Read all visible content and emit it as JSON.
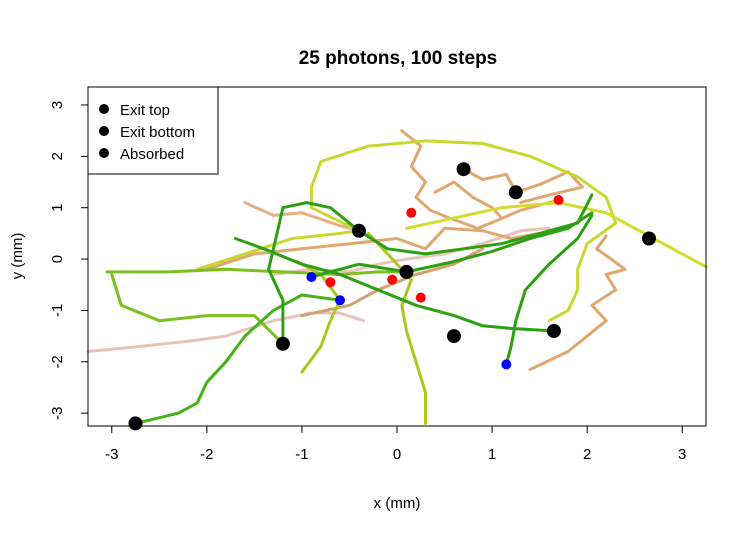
{
  "chart_data": {
    "type": "line",
    "title": "25 photons, 100 steps",
    "xlabel": "x (mm)",
    "ylabel": "y (mm)",
    "xlim": [
      -3.25,
      3.25
    ],
    "ylim": [
      -3.25,
      3.35
    ],
    "x_ticks": [
      -3,
      -2,
      -1,
      0,
      1,
      2,
      3
    ],
    "y_ticks": [
      -3,
      -2,
      -1,
      0,
      1,
      2,
      3
    ],
    "grid": false,
    "legend_position": "top-left",
    "legend": [
      {
        "label": "Exit top",
        "color": "#000000"
      },
      {
        "label": "Exit bottom",
        "color": "#ff0000"
      },
      {
        "label": "Absorbed",
        "color": "#0000ff"
      }
    ],
    "endpoints": {
      "exit_top": [
        [
          -2.75,
          -3.2
        ],
        [
          -1.2,
          -1.65
        ],
        [
          -0.4,
          0.55
        ],
        [
          0.1,
          -0.25
        ],
        [
          0.7,
          1.75
        ],
        [
          0.6,
          -1.5
        ],
        [
          1.25,
          1.3
        ],
        [
          1.65,
          -1.4
        ],
        [
          2.65,
          0.4
        ]
      ],
      "exit_bottom": [
        [
          -0.7,
          -0.45
        ],
        [
          -0.05,
          -0.4
        ],
        [
          0.15,
          0.9
        ],
        [
          0.25,
          -0.75
        ],
        [
          1.7,
          1.15
        ]
      ],
      "absorbed": [
        [
          -0.9,
          -0.35
        ],
        [
          -0.6,
          -0.8
        ],
        [
          1.15,
          -2.05
        ]
      ]
    },
    "paths": [
      {
        "color": "#e8c4b8",
        "points": [
          [
            -3.25,
            -1.8
          ],
          [
            -2.7,
            -1.7
          ],
          [
            -2.2,
            -1.6
          ],
          [
            -1.8,
            -1.5
          ],
          [
            -1.3,
            -1.2
          ],
          [
            -0.9,
            -1.05
          ],
          [
            -0.6,
            -1.05
          ],
          [
            -0.35,
            -1.2
          ]
        ]
      },
      {
        "color": "#e8c4b8",
        "points": [
          [
            -1.3,
            -0.3
          ],
          [
            -0.9,
            -0.2
          ],
          [
            -0.5,
            -0.25
          ],
          [
            -0.2,
            -0.1
          ],
          [
            0.1,
            0.0
          ],
          [
            0.5,
            0.1
          ],
          [
            0.9,
            0.3
          ],
          [
            1.3,
            0.55
          ],
          [
            1.6,
            0.6
          ]
        ]
      },
      {
        "color": "#e8b080",
        "points": [
          [
            -1.6,
            1.1
          ],
          [
            -1.3,
            0.85
          ],
          [
            -1.0,
            0.9
          ],
          [
            -0.6,
            0.65
          ],
          [
            -0.4,
            0.55
          ]
        ]
      },
      {
        "color": "#e0a870",
        "points": [
          [
            -2.0,
            -0.2
          ],
          [
            -1.5,
            0.1
          ],
          [
            -1.0,
            0.2
          ],
          [
            -0.5,
            0.3
          ],
          [
            0.0,
            0.4
          ],
          [
            0.3,
            0.2
          ],
          [
            0.5,
            0.6
          ],
          [
            0.9,
            0.55
          ],
          [
            1.2,
            0.4
          ],
          [
            1.5,
            0.5
          ]
        ]
      },
      {
        "color": "#e0a870",
        "points": [
          [
            0.05,
            2.5
          ],
          [
            0.25,
            2.2
          ],
          [
            0.15,
            1.8
          ],
          [
            0.3,
            1.5
          ],
          [
            0.2,
            1.2
          ],
          [
            0.35,
            0.95
          ],
          [
            0.55,
            0.8
          ],
          [
            0.85,
            0.6
          ],
          [
            1.05,
            0.75
          ],
          [
            1.3,
            0.95
          ],
          [
            1.7,
            1.15
          ]
        ]
      },
      {
        "color": "#e0a870",
        "points": [
          [
            0.7,
            1.75
          ],
          [
            0.9,
            1.55
          ],
          [
            1.15,
            1.65
          ],
          [
            1.25,
            1.3
          ],
          [
            1.5,
            1.45
          ],
          [
            1.8,
            1.7
          ],
          [
            1.95,
            1.4
          ],
          [
            1.6,
            1.25
          ],
          [
            1.3,
            1.1
          ]
        ]
      },
      {
        "color": "#e0a870",
        "points": [
          [
            0.4,
            1.3
          ],
          [
            0.6,
            1.5
          ],
          [
            0.8,
            1.2
          ],
          [
            1.0,
            1.0
          ],
          [
            1.1,
            0.8
          ]
        ]
      },
      {
        "color": "#e0a870",
        "points": [
          [
            1.4,
            -2.15
          ],
          [
            1.8,
            -1.8
          ],
          [
            2.0,
            -1.5
          ],
          [
            2.2,
            -1.2
          ],
          [
            2.05,
            -0.9
          ],
          [
            2.3,
            -0.6
          ],
          [
            2.2,
            -0.3
          ],
          [
            2.4,
            -0.2
          ],
          [
            2.1,
            0.2
          ],
          [
            2.2,
            0.45
          ]
        ]
      },
      {
        "color": "#d4a070",
        "points": [
          [
            -1.0,
            -1.1
          ],
          [
            -0.5,
            -0.9
          ],
          [
            -0.2,
            -0.6
          ],
          [
            0.2,
            -0.3
          ],
          [
            0.6,
            -0.1
          ],
          [
            0.9,
            0.2
          ]
        ]
      },
      {
        "color": "#c8d830",
        "points": [
          [
            -0.4,
            0.55
          ],
          [
            -0.9,
            1.0
          ],
          [
            -0.9,
            1.4
          ],
          [
            -0.8,
            1.9
          ],
          [
            -0.3,
            2.2
          ],
          [
            0.3,
            2.3
          ],
          [
            0.9,
            2.25
          ],
          [
            1.4,
            2.0
          ],
          [
            1.9,
            1.6
          ],
          [
            2.2,
            1.2
          ],
          [
            2.3,
            0.7
          ],
          [
            2.0,
            0.3
          ],
          [
            1.9,
            -0.2
          ],
          [
            1.9,
            -0.6
          ],
          [
            1.8,
            -1.0
          ],
          [
            1.6,
            -1.2
          ]
        ]
      },
      {
        "color": "#c8d830",
        "points": [
          [
            -2.1,
            -0.2
          ],
          [
            -1.6,
            0.1
          ],
          [
            -1.1,
            0.4
          ],
          [
            -0.6,
            0.5
          ],
          [
            -0.4,
            0.55
          ]
        ]
      },
      {
        "color": "#d4dc30",
        "points": [
          [
            0.1,
            0.6
          ],
          [
            0.6,
            0.8
          ],
          [
            1.1,
            1.0
          ],
          [
            1.7,
            1.1
          ],
          [
            2.2,
            0.9
          ],
          [
            2.6,
            0.5
          ],
          [
            2.9,
            0.2
          ],
          [
            3.25,
            -0.15
          ]
        ]
      },
      {
        "color": "#a8c820",
        "points": [
          [
            -0.3,
            0.5
          ],
          [
            -0.1,
            0.1
          ],
          [
            0.15,
            -0.4
          ],
          [
            0.05,
            -0.9
          ],
          [
            0.1,
            -1.4
          ],
          [
            0.2,
            -2.0
          ],
          [
            0.3,
            -2.6
          ],
          [
            0.3,
            -3.2
          ]
        ]
      },
      {
        "color": "#a8c820",
        "points": [
          [
            -1.05,
            -0.05
          ],
          [
            -0.8,
            -0.3
          ],
          [
            -0.6,
            -0.8
          ],
          [
            -0.7,
            -1.2
          ],
          [
            -0.8,
            -1.7
          ],
          [
            -1.0,
            -2.2
          ]
        ]
      },
      {
        "color": "#7cc020",
        "points": [
          [
            -3.05,
            -0.25
          ],
          [
            -2.4,
            -0.25
          ],
          [
            -1.8,
            -0.2
          ],
          [
            -1.2,
            -0.25
          ],
          [
            -0.6,
            -0.3
          ],
          [
            -0.2,
            -0.25
          ],
          [
            0.1,
            -0.25
          ]
        ]
      },
      {
        "color": "#7cc020",
        "points": [
          [
            -3.0,
            -0.3
          ],
          [
            -2.9,
            -0.9
          ],
          [
            -2.5,
            -1.2
          ],
          [
            -2.0,
            -1.1
          ],
          [
            -1.5,
            -1.1
          ],
          [
            -1.2,
            -1.65
          ]
        ]
      },
      {
        "color": "#48b018",
        "points": [
          [
            -2.75,
            -3.2
          ],
          [
            -2.3,
            -3.0
          ],
          [
            -2.1,
            -2.8
          ],
          [
            -2.0,
            -2.4
          ],
          [
            -1.8,
            -2.0
          ],
          [
            -1.6,
            -1.5
          ],
          [
            -1.3,
            -1.0
          ],
          [
            -1.0,
            -0.7
          ],
          [
            -0.6,
            -0.8
          ]
        ]
      },
      {
        "color": "#2ca010",
        "points": [
          [
            -1.2,
            -1.65
          ],
          [
            -1.2,
            -0.8
          ],
          [
            -1.35,
            -0.2
          ],
          [
            -1.3,
            0.2
          ],
          [
            -1.25,
            0.6
          ],
          [
            -1.2,
            1.0
          ],
          [
            -0.95,
            1.1
          ],
          [
            -0.7,
            1.0
          ],
          [
            -0.4,
            0.55
          ],
          [
            -0.1,
            0.2
          ],
          [
            0.3,
            0.1
          ],
          [
            0.7,
            0.2
          ],
          [
            1.1,
            0.3
          ],
          [
            1.5,
            0.5
          ],
          [
            1.9,
            0.7
          ],
          [
            2.05,
            1.25
          ]
        ]
      },
      {
        "color": "#2ca010",
        "points": [
          [
            -1.7,
            0.4
          ],
          [
            -1.4,
            0.2
          ],
          [
            -1.0,
            -0.1
          ],
          [
            -0.6,
            -0.3
          ],
          [
            -0.2,
            -0.6
          ],
          [
            0.2,
            -0.9
          ],
          [
            0.6,
            -1.1
          ],
          [
            0.9,
            -1.3
          ],
          [
            1.2,
            -1.35
          ],
          [
            1.65,
            -1.4
          ]
        ]
      },
      {
        "color": "#2ca010",
        "points": [
          [
            1.15,
            -2.05
          ],
          [
            1.2,
            -1.7
          ],
          [
            1.25,
            -1.2
          ],
          [
            1.35,
            -0.6
          ],
          [
            1.6,
            -0.1
          ],
          [
            1.9,
            0.4
          ],
          [
            2.05,
            0.85
          ]
        ]
      },
      {
        "color": "#2ca010",
        "points": [
          [
            -0.9,
            -0.35
          ],
          [
            -0.4,
            -0.1
          ],
          [
            0.1,
            -0.25
          ],
          [
            0.6,
            -0.05
          ],
          [
            1.0,
            0.15
          ],
          [
            1.4,
            0.4
          ],
          [
            1.8,
            0.6
          ],
          [
            2.05,
            0.9
          ]
        ]
      }
    ]
  }
}
